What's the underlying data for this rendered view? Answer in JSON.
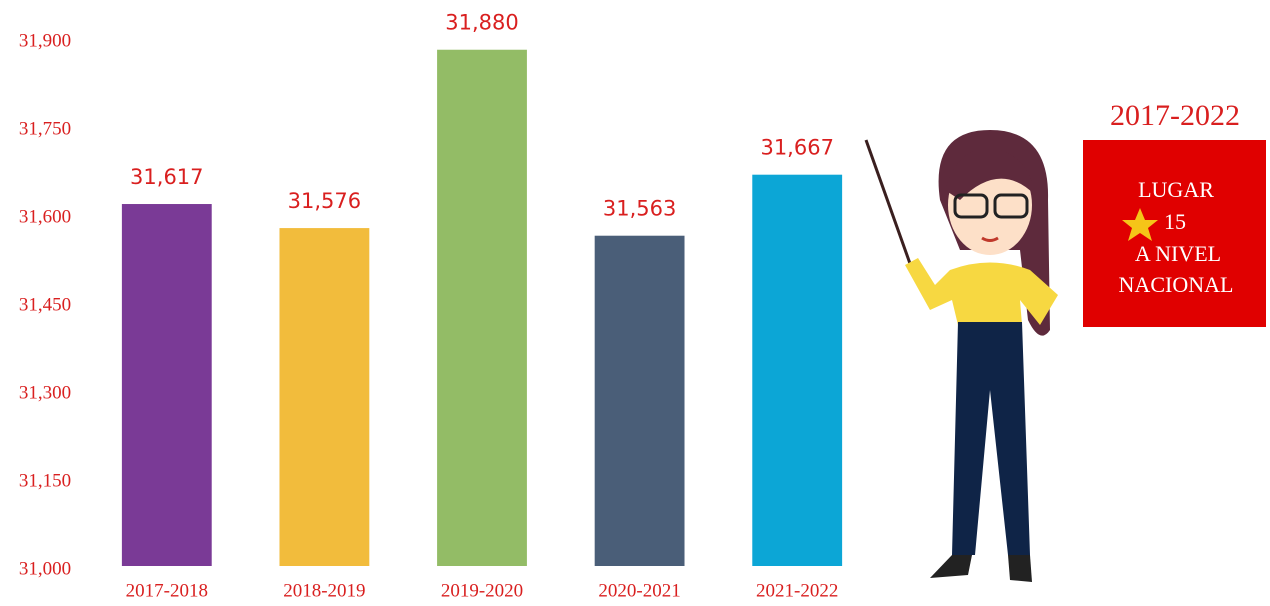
{
  "chart_data": {
    "type": "bar",
    "categories": [
      "2017-2018",
      "2018-2019",
      "2019-2020",
      "2020-2021",
      "2021-2022"
    ],
    "values": [
      31617,
      31576,
      31880,
      31563,
      31667
    ],
    "value_labels": [
      "31,617",
      "31,576",
      "31,880",
      "31,563",
      "31,667"
    ],
    "colors": [
      "#7a3a96",
      "#f2bc3c",
      "#93bc66",
      "#4a5e78",
      "#0ca6d6"
    ],
    "ylim": [
      31000,
      31900
    ],
    "yticks": [
      {
        "value": 31000,
        "label": "31,000"
      },
      {
        "value": 31150,
        "label": "31,150"
      },
      {
        "value": 31300,
        "label": "31,300"
      },
      {
        "value": 31450,
        "label": "31,450"
      },
      {
        "value": 31600,
        "label": "31,600"
      },
      {
        "value": 31750,
        "label": "31,750"
      },
      {
        "value": 31900,
        "label": "31,900"
      }
    ],
    "grid": false,
    "annotation_title": "2017-2022",
    "annotation_lines": [
      "LUGAR",
      "15",
      "A NIVEL",
      "NACIONAL"
    ]
  }
}
